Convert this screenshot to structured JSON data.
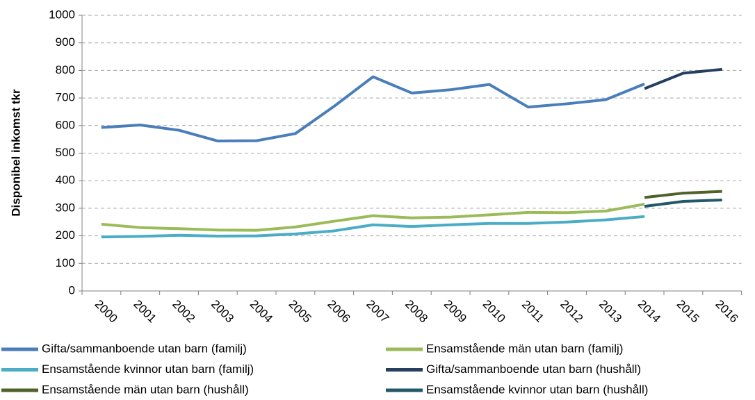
{
  "chart_data": {
    "type": "line",
    "y_label": "Disponibel inkomst tkr",
    "categories": [
      "2000",
      "2001",
      "2002",
      "2003",
      "2004",
      "2005",
      "2006",
      "2007",
      "2008",
      "2009",
      "2010",
      "2011",
      "2012",
      "2013",
      "2014",
      "2015",
      "2016"
    ],
    "series": [
      {
        "name": "Gifta/sammanboende utan barn (familj)",
        "color": "#4a7ebb",
        "values": [
          593,
          602,
          583,
          544,
          545,
          571,
          670,
          777,
          718,
          730,
          749,
          667,
          679,
          694,
          751,
          null,
          null
        ]
      },
      {
        "name": "Ensamstående män utan barn (familj)",
        "color": "#9bbb59",
        "values": [
          242,
          230,
          226,
          221,
          220,
          232,
          253,
          273,
          265,
          268,
          276,
          285,
          284,
          290,
          315,
          null,
          null
        ]
      },
      {
        "name": "Ensamstående kvinnor utan barn (familj)",
        "color": "#4bacc6",
        "values": [
          196,
          198,
          202,
          199,
          200,
          207,
          218,
          240,
          234,
          240,
          245,
          245,
          250,
          258,
          270,
          null,
          null
        ]
      },
      {
        "name": "Gifta/sammanboende utan barn (hushåll)",
        "color": "#243f60",
        "values": [
          null,
          null,
          null,
          null,
          null,
          null,
          null,
          null,
          null,
          null,
          null,
          null,
          null,
          null,
          734,
          790,
          804
        ]
      },
      {
        "name": "Ensamstående män utan barn (hushåll)",
        "color": "#4f6228",
        "values": [
          null,
          null,
          null,
          null,
          null,
          null,
          null,
          null,
          null,
          null,
          null,
          null,
          null,
          null,
          339,
          355,
          361
        ]
      },
      {
        "name": "Ensamstående kvinnor utan barn (hushåll)",
        "color": "#215968",
        "values": [
          null,
          null,
          null,
          null,
          null,
          null,
          null,
          null,
          null,
          null,
          null,
          null,
          null,
          null,
          307,
          325,
          330
        ]
      }
    ],
    "ylim": [
      0,
      1000
    ],
    "yticks": [
      0,
      100,
      200,
      300,
      400,
      500,
      600,
      700,
      800,
      900,
      1000
    ],
    "grid": true,
    "legend": "bottom"
  }
}
